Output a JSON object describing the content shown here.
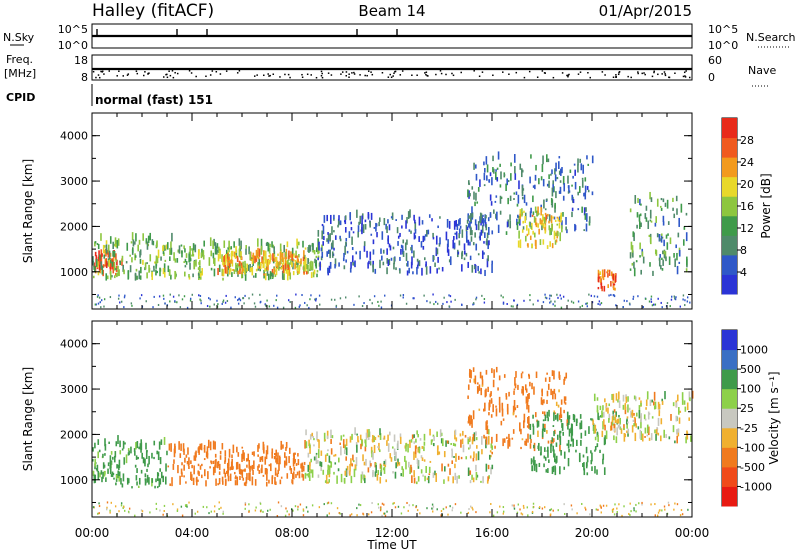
{
  "header": {
    "station": "Halley (fitACF)",
    "beam": "Beam 14",
    "date": "01/Apr/2015"
  },
  "panels": {
    "nsky": {
      "left_label": "N.Sky",
      "right_label": "N.Search",
      "left_ticks": [
        "10^5",
        "10^0"
      ],
      "right_ticks": [
        "10^5",
        "10^0"
      ]
    },
    "freq": {
      "left_label_1": "Freq.",
      "left_label_2": "[MHz]",
      "right_label": "Nave",
      "left_ticks": [
        "18",
        "8"
      ],
      "right_ticks": [
        "60",
        "0"
      ]
    },
    "cpid": {
      "label": "CPID",
      "text": "normal (fast) 151"
    }
  },
  "colors": {
    "power_scale": [
      "#2b34d6",
      "#2f58c8",
      "#4f8a6a",
      "#3f9a4a",
      "#8dc63f",
      "#e8d82a",
      "#f29a1d",
      "#f05a1f",
      "#e82a1a"
    ],
    "velocity_scale": [
      "#2b34d6",
      "#3a6fc4",
      "#3f9a4a",
      "#8dd04a",
      "#c8c8c0",
      "#f0b030",
      "#f07a1e",
      "#f04a1a",
      "#e81a12"
    ]
  },
  "chart_data": [
    {
      "type": "heatmap",
      "name": "power",
      "ylabel": "Slant Range [km]",
      "yticks": [
        "1000",
        "2000",
        "3000",
        "4000"
      ],
      "ylim": [
        180,
        4500
      ],
      "colorbar": {
        "label": "Power [dB]",
        "ticks": [
          "4",
          "8",
          "12",
          "16",
          "20",
          "24",
          "28"
        ],
        "range": [
          0,
          32
        ]
      },
      "features": [
        {
          "t": [
            0.0,
            1.2
          ],
          "range": [
            900,
            1400
          ],
          "value": 28
        },
        {
          "t": [
            0.0,
            3.2
          ],
          "range": [
            800,
            1700
          ],
          "value": 14
        },
        {
          "t": [
            3.2,
            9.2
          ],
          "range": [
            800,
            1600
          ],
          "value": 14
        },
        {
          "t": [
            5.0,
            8.6
          ],
          "range": [
            900,
            1350
          ],
          "value": 22
        },
        {
          "t": [
            9.0,
            16.0
          ],
          "range": [
            900,
            2200
          ],
          "value": 5
        },
        {
          "t": [
            15.0,
            20.0
          ],
          "range": [
            1800,
            3500
          ],
          "value": 8
        },
        {
          "t": [
            17.0,
            18.8
          ],
          "range": [
            1500,
            2300
          ],
          "value": 20
        },
        {
          "t": [
            20.2,
            21.0
          ],
          "range": [
            550,
            1000
          ],
          "value": 26
        },
        {
          "t": [
            21.5,
            23.8
          ],
          "range": [
            900,
            2600
          ],
          "value": 11
        }
      ]
    },
    {
      "type": "heatmap",
      "name": "velocity",
      "ylabel": "Slant Range [km]",
      "xlabel": "Time UT",
      "yticks": [
        "1000",
        "2000",
        "3000",
        "4000"
      ],
      "xticks": [
        "00:00",
        "04:00",
        "08:00",
        "12:00",
        "16:00",
        "20:00",
        "00:00"
      ],
      "xlim_hours": [
        0,
        24
      ],
      "ylim": [
        180,
        4500
      ],
      "colorbar": {
        "label": "Velocity [m s⁻¹]",
        "ticks": [
          "1000",
          "500",
          "100",
          "25",
          "-25",
          "-100",
          "-500",
          "-1000"
        ]
      },
      "features": [
        {
          "t": [
            0.0,
            3.0
          ],
          "range": [
            800,
            1800
          ],
          "value": 200
        },
        {
          "t": [
            3.0,
            8.5
          ],
          "range": [
            850,
            1700
          ],
          "value": -300
        },
        {
          "t": [
            8.5,
            16.0
          ],
          "range": [
            900,
            2000
          ],
          "value": 0
        },
        {
          "t": [
            15.0,
            19.0
          ],
          "range": [
            1600,
            3400
          ],
          "value": -200
        },
        {
          "t": [
            17.5,
            20.5
          ],
          "range": [
            1100,
            2400
          ],
          "value": 300
        },
        {
          "t": [
            20.0,
            24.0
          ],
          "range": [
            1800,
            2800
          ],
          "value": 0
        }
      ]
    }
  ]
}
